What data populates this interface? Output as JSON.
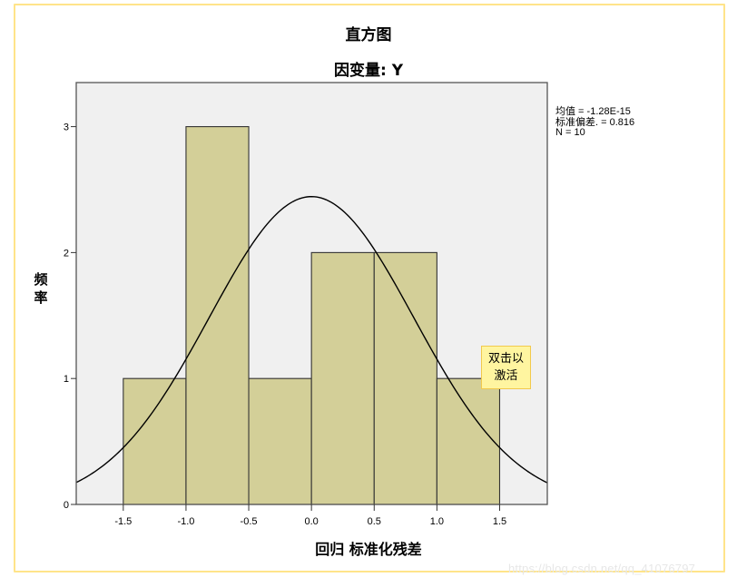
{
  "titles": {
    "main": "直方图",
    "subtitle": "因变量: Y"
  },
  "stats": {
    "mean": "均值 = -1.28E-15",
    "std": "标准偏差. = 0.816",
    "n": "N = 10"
  },
  "axes": {
    "ylabel": "频率",
    "xlabel": "回归 标准化残差"
  },
  "tooltip": {
    "line1": "双击以",
    "line2": "激活"
  },
  "watermark": "https://blog.csdn.net/qq_41076797",
  "colors": {
    "bar_fill": "#d3cf98",
    "plot_bg": "#f0f0f0",
    "frame_border": "#ffe48a",
    "curve": "#000000"
  },
  "chart_data": {
    "type": "bar",
    "title": "直方图",
    "subtitle": "因变量: Y",
    "xlabel": "回归 标准化残差",
    "ylabel": "频率",
    "bins": [
      {
        "from": -1.5,
        "to": -1.0,
        "count": 1
      },
      {
        "from": -1.0,
        "to": -0.5,
        "count": 3
      },
      {
        "from": -0.5,
        "to": 0.0,
        "count": 1
      },
      {
        "from": 0.0,
        "to": 0.5,
        "count": 2
      },
      {
        "from": 0.5,
        "to": 1.0,
        "count": 2
      },
      {
        "from": 1.0,
        "to": 1.5,
        "count": 1
      }
    ],
    "categories": [
      "-1.5~-1.0",
      "-1.0~-0.5",
      "-0.5~0.0",
      "0.0~0.5",
      "0.5~1.0",
      "1.0~1.5"
    ],
    "values": [
      1,
      3,
      1,
      2,
      2,
      1
    ],
    "xticks": [
      "-1.5",
      "-1.0",
      "-0.5",
      "0.0",
      "0.5",
      "1.0",
      "1.5"
    ],
    "yticks": [
      "0",
      "1",
      "2",
      "3"
    ],
    "xlim": [
      -1.875,
      1.88
    ],
    "ylim": [
      0,
      3.35
    ],
    "normal_curve": {
      "mean": -1.28e-15,
      "std": 0.816,
      "n": 10,
      "bin_width": 0.5
    },
    "legend": [
      "均值 = -1.28E-15",
      "标准偏差. = 0.816",
      "N = 10"
    ],
    "grid": false
  }
}
